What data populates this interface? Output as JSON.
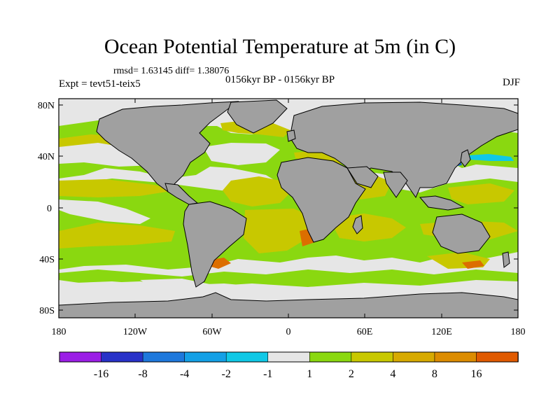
{
  "title": "Ocean Potential Temperature at 5m (in C)",
  "stats": "rmsd= 1.63145 diff= 1.38076",
  "experiment": "Expt = tevt51-teix5",
  "period": "0156kyr BP - 0156kyr BP",
  "season": "DJF",
  "map": {
    "lat_labels": [
      "80N",
      "40N",
      "0",
      "40S",
      "80S"
    ],
    "lon_labels": [
      "180",
      "120W",
      "60W",
      "0",
      "60E",
      "120E",
      "180"
    ],
    "colors": {
      "land": "#a0a0a0",
      "near_zero": "#e6e6e6",
      "green": "#8ad810",
      "yellow": "#c8c800",
      "cyan": "#10c8e6",
      "blue": "#1e64d2",
      "orange": "#d79600",
      "dark_orange": "#dc6e00"
    }
  },
  "colorbar": {
    "bins": [
      {
        "color": "#9b1ee6"
      },
      {
        "color": "#2832c8"
      },
      {
        "color": "#1e78dc"
      },
      {
        "color": "#14a0e6"
      },
      {
        "color": "#10c8e6"
      },
      {
        "color": "#e6e6e6"
      },
      {
        "color": "#8ad810"
      },
      {
        "color": "#c8c800"
      },
      {
        "color": "#d7aa00"
      },
      {
        "color": "#dc8c00"
      },
      {
        "color": "#e05a00"
      }
    ],
    "labels": [
      "-16",
      "-8",
      "-4",
      "-2",
      "-1",
      "1",
      "2",
      "4",
      "8",
      "16"
    ]
  }
}
